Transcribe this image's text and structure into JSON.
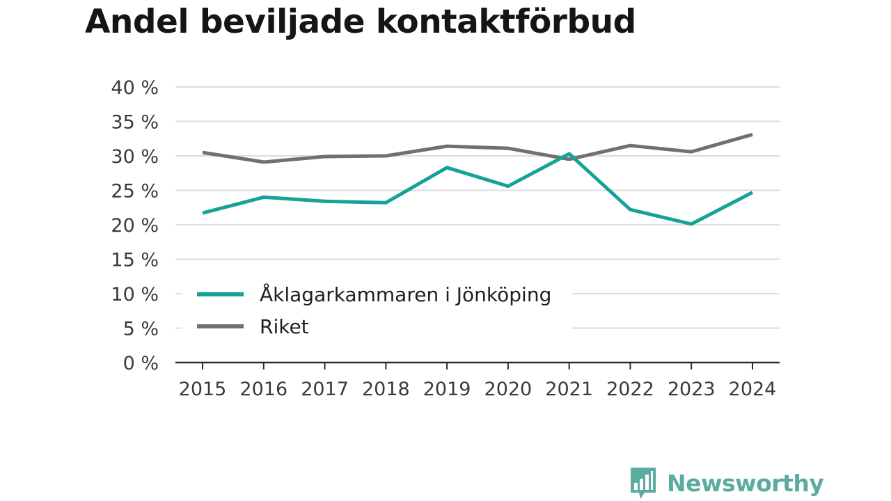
{
  "chart_data": {
    "type": "line",
    "title": "Andel beviljade kontaktförbud",
    "x": [
      "2015",
      "2016",
      "2017",
      "2018",
      "2019",
      "2020",
      "2021",
      "2022",
      "2023",
      "2024"
    ],
    "series": [
      {
        "name": "Åklagarkammaren i Jönköping",
        "color": "#14a396",
        "values": [
          21.7,
          24.0,
          23.4,
          23.2,
          28.3,
          25.6,
          30.3,
          22.2,
          20.1,
          24.7
        ]
      },
      {
        "name": "Riket",
        "color": "#707074",
        "values": [
          30.5,
          29.1,
          29.9,
          30.0,
          31.4,
          31.1,
          29.5,
          31.5,
          30.6,
          33.1
        ]
      }
    ],
    "yticks": [
      "0 %",
      "5 %",
      "10 %",
      "15 %",
      "20 %",
      "25 %",
      "30 %",
      "35 %",
      "40 %"
    ],
    "ylim": [
      0,
      40
    ],
    "grid": true,
    "legend_position": "lower-left inside plot"
  },
  "brand": {
    "name": "Newsworthy",
    "icon": "bar-chart-speech-bubble-icon",
    "color": "#5aaba0"
  }
}
